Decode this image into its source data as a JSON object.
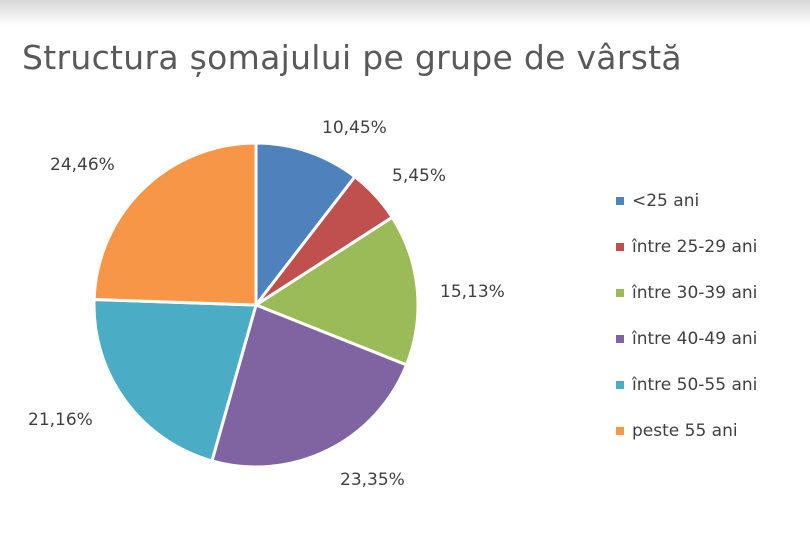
{
  "chart_data": {
    "type": "pie",
    "title": "Structura șomajului pe grupe de vârstă",
    "categories": [
      "<25 ani",
      "între 25-29 ani",
      "între 30-39 ani",
      "între 40-49 ani",
      "între 50-55 ani",
      "peste 55 ani"
    ],
    "values": [
      10.45,
      5.45,
      15.13,
      23.35,
      21.16,
      24.46
    ],
    "data_labels": [
      "10,45%",
      "5,45%",
      "15,13%",
      "23,35%",
      "21,16%",
      "24,46%"
    ],
    "colors": [
      "#4f81bd",
      "#c0504d",
      "#9bbb59",
      "#8064a2",
      "#4bacc6",
      "#f79646"
    ],
    "legend_position": "right",
    "start": "top, clockwise"
  }
}
